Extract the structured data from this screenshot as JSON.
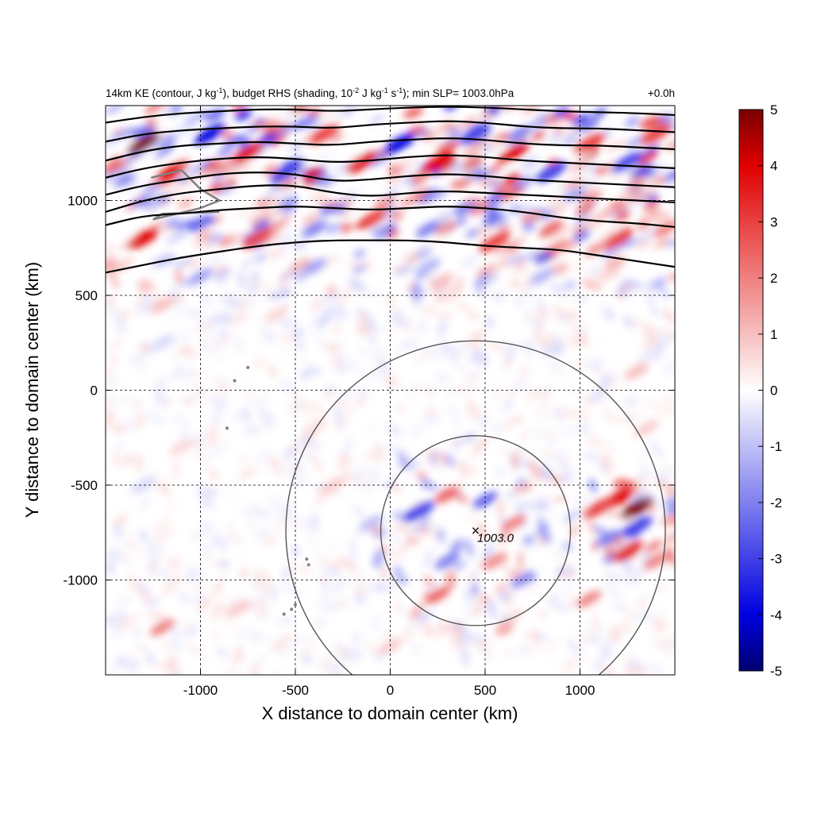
{
  "title": {
    "left_parts": [
      "14km KE (contour, J kg",
      "-1",
      "), budget RHS (shading, 10",
      "-2",
      " J kg",
      "-1",
      " s",
      "-1",
      "); min SLP= 1003.0hPa"
    ],
    "right": "+0.0h"
  },
  "colorbar_ticks": [
    "5",
    "4",
    "3",
    "2",
    "1",
    "0",
    "-1",
    "-2",
    "-3",
    "-4",
    "-5"
  ],
  "colors": {
    "max": "#7a0000",
    "pos": "#e00000",
    "zero": "#ffffff",
    "neg": "#0000e0",
    "min": "#000070",
    "contour": "#000000",
    "circle": "#555555",
    "coast": "#808080"
  },
  "chart_data": {
    "type": "heatmap",
    "xlabel": "X distance to domain center (km)",
    "ylabel": "Y distance to domain center (km)",
    "xlim": [
      -1500,
      1500
    ],
    "ylim": [
      -1500,
      1500
    ],
    "xticks": [
      -1000,
      -500,
      0,
      500,
      1000
    ],
    "yticks": [
      1000,
      500,
      0,
      -500,
      -1000
    ],
    "xtick_labels": [
      "-1000",
      "-500",
      "0",
      "500",
      "1000"
    ],
    "ytick_labels": [
      "1000",
      "500",
      "0",
      "-500",
      "-1000"
    ],
    "grid": true,
    "colorbar": {
      "min": -5,
      "max": 5,
      "label_values": [
        5,
        4,
        3,
        2,
        1,
        0,
        -1,
        -2,
        -3,
        -4,
        -5
      ]
    },
    "center": {
      "x": 450,
      "y": -740,
      "label": "1003.0",
      "marker": "×"
    },
    "range_circles_km": [
      500,
      1000
    ],
    "ke_contours": [
      [
        [
          -1500,
          620
        ],
        [
          -1300,
          660
        ],
        [
          -1100,
          700
        ],
        [
          -900,
          730
        ],
        [
          -700,
          760
        ],
        [
          -500,
          780
        ],
        [
          -300,
          790
        ],
        [
          -100,
          790
        ],
        [
          100,
          790
        ],
        [
          300,
          780
        ],
        [
          500,
          760
        ],
        [
          700,
          750
        ],
        [
          900,
          740
        ],
        [
          1100,
          710
        ],
        [
          1300,
          680
        ],
        [
          1500,
          650
        ]
      ],
      [
        [
          -1500,
          870
        ],
        [
          -1300,
          920
        ],
        [
          -1100,
          930
        ],
        [
          -900,
          950
        ],
        [
          -700,
          960
        ],
        [
          -500,
          970
        ],
        [
          -300,
          960
        ],
        [
          -100,
          950
        ],
        [
          100,
          960
        ],
        [
          300,
          970
        ],
        [
          500,
          960
        ],
        [
          700,
          940
        ],
        [
          900,
          910
        ],
        [
          1100,
          890
        ],
        [
          1300,
          880
        ],
        [
          1500,
          860
        ]
      ],
      [
        [
          -1500,
          940
        ],
        [
          -1300,
          1000
        ],
        [
          -1100,
          1040
        ],
        [
          -900,
          1060
        ],
        [
          -700,
          1080
        ],
        [
          -500,
          1080
        ],
        [
          -300,
          1040
        ],
        [
          -100,
          1020
        ],
        [
          100,
          1040
        ],
        [
          300,
          1050
        ],
        [
          500,
          1040
        ],
        [
          700,
          1030
        ],
        [
          900,
          1020
        ],
        [
          1100,
          1010
        ],
        [
          1300,
          1000
        ],
        [
          1500,
          990
        ]
      ],
      [
        [
          -1500,
          1030
        ],
        [
          -1300,
          1080
        ],
        [
          -1100,
          1110
        ],
        [
          -900,
          1140
        ],
        [
          -700,
          1150
        ],
        [
          -500,
          1140
        ],
        [
          -300,
          1100
        ],
        [
          -100,
          1110
        ],
        [
          100,
          1130
        ],
        [
          300,
          1140
        ],
        [
          500,
          1130
        ],
        [
          700,
          1110
        ],
        [
          900,
          1100
        ],
        [
          1100,
          1090
        ],
        [
          1300,
          1080
        ],
        [
          1500,
          1070
        ]
      ],
      [
        [
          -1500,
          1120
        ],
        [
          -1300,
          1170
        ],
        [
          -1100,
          1200
        ],
        [
          -900,
          1220
        ],
        [
          -700,
          1230
        ],
        [
          -500,
          1220
        ],
        [
          -300,
          1200
        ],
        [
          -100,
          1210
        ],
        [
          100,
          1230
        ],
        [
          300,
          1240
        ],
        [
          500,
          1230
        ],
        [
          700,
          1210
        ],
        [
          900,
          1200
        ],
        [
          1100,
          1190
        ],
        [
          1300,
          1180
        ],
        [
          1500,
          1170
        ]
      ],
      [
        [
          -1500,
          1210
        ],
        [
          -1300,
          1260
        ],
        [
          -1100,
          1290
        ],
        [
          -900,
          1300
        ],
        [
          -700,
          1310
        ],
        [
          -500,
          1300
        ],
        [
          -300,
          1290
        ],
        [
          -100,
          1310
        ],
        [
          100,
          1320
        ],
        [
          300,
          1330
        ],
        [
          500,
          1320
        ],
        [
          700,
          1300
        ],
        [
          900,
          1290
        ],
        [
          1100,
          1290
        ],
        [
          1300,
          1280
        ],
        [
          1500,
          1270
        ]
      ],
      [
        [
          -1500,
          1310
        ],
        [
          -1300,
          1350
        ],
        [
          -1100,
          1370
        ],
        [
          -900,
          1380
        ],
        [
          -700,
          1390
        ],
        [
          -500,
          1390
        ],
        [
          -300,
          1380
        ],
        [
          -100,
          1400
        ],
        [
          100,
          1410
        ],
        [
          300,
          1420
        ],
        [
          500,
          1410
        ],
        [
          700,
          1390
        ],
        [
          900,
          1380
        ],
        [
          1100,
          1380
        ],
        [
          1300,
          1370
        ],
        [
          1500,
          1360
        ]
      ],
      [
        [
          -1500,
          1410
        ],
        [
          -1300,
          1440
        ],
        [
          -1100,
          1460
        ],
        [
          -900,
          1470
        ],
        [
          -700,
          1480
        ],
        [
          -500,
          1480
        ],
        [
          -300,
          1470
        ],
        [
          -100,
          1480
        ],
        [
          100,
          1490
        ],
        [
          300,
          1495
        ],
        [
          500,
          1490
        ],
        [
          700,
          1480
        ],
        [
          900,
          1470
        ],
        [
          1100,
          1465
        ],
        [
          1300,
          1460
        ],
        [
          1500,
          1450
        ]
      ]
    ],
    "shading_features": [
      {
        "x": -1300,
        "y": 1300,
        "value": 5
      },
      {
        "x": -1150,
        "y": 1150,
        "value": 4
      },
      {
        "x": -950,
        "y": 1350,
        "value": -4
      },
      {
        "x": -750,
        "y": 1250,
        "value": 4
      },
      {
        "x": -550,
        "y": 1150,
        "value": -3
      },
      {
        "x": -350,
        "y": 1350,
        "value": 3
      },
      {
        "x": -150,
        "y": 1200,
        "value": 4
      },
      {
        "x": 50,
        "y": 1300,
        "value": -4
      },
      {
        "x": 250,
        "y": 1200,
        "value": 4
      },
      {
        "x": 450,
        "y": 1350,
        "value": -3
      },
      {
        "x": 650,
        "y": 1250,
        "value": 4
      },
      {
        "x": 850,
        "y": 1150,
        "value": -3
      },
      {
        "x": 1050,
        "y": 1300,
        "value": 3
      },
      {
        "x": 1250,
        "y": 1200,
        "value": -3
      },
      {
        "x": 1400,
        "y": 1350,
        "value": 3
      },
      {
        "x": -1300,
        "y": 800,
        "value": 4
      },
      {
        "x": -1000,
        "y": 880,
        "value": -2.5
      },
      {
        "x": -700,
        "y": 800,
        "value": 3
      },
      {
        "x": -400,
        "y": 850,
        "value": -2
      },
      {
        "x": -100,
        "y": 900,
        "value": 3
      },
      {
        "x": 200,
        "y": 850,
        "value": -2
      },
      {
        "x": 550,
        "y": 780,
        "value": 3
      },
      {
        "x": 850,
        "y": 850,
        "value": 2.5
      },
      {
        "x": 1200,
        "y": 800,
        "value": 3
      },
      {
        "x": 1450,
        "y": 850,
        "value": 2
      },
      {
        "x": -1000,
        "y": 600,
        "value": -1.5
      },
      {
        "x": -400,
        "y": 650,
        "value": -1.5
      },
      {
        "x": 200,
        "y": 650,
        "value": -1.2
      },
      {
        "x": 800,
        "y": 600,
        "value": -1.2
      },
      {
        "x": -1200,
        "y": 450,
        "value": 1
      },
      {
        "x": -600,
        "y": 400,
        "value": 0.6
      },
      {
        "x": 300,
        "y": 500,
        "value": 0.5
      },
      {
        "x": -1200,
        "y": 250,
        "value": -0.6
      },
      {
        "x": 1300,
        "y": 100,
        "value": 1
      },
      {
        "x": 1350,
        "y": -200,
        "value": 0.8
      },
      {
        "x": 1200,
        "y": -570,
        "value": 4
      },
      {
        "x": 1300,
        "y": -620,
        "value": 5
      },
      {
        "x": 1100,
        "y": -620,
        "value": 3
      },
      {
        "x": 1250,
        "y": -850,
        "value": 3.5
      },
      {
        "x": 1300,
        "y": -720,
        "value": -3
      },
      {
        "x": 1150,
        "y": -780,
        "value": -2
      },
      {
        "x": 1400,
        "y": -900,
        "value": 2
      },
      {
        "x": 150,
        "y": -640,
        "value": -3
      },
      {
        "x": 300,
        "y": -550,
        "value": 2.5
      },
      {
        "x": 500,
        "y": -580,
        "value": -2.5
      },
      {
        "x": 650,
        "y": -700,
        "value": 2
      },
      {
        "x": 300,
        "y": -900,
        "value": -2
      },
      {
        "x": 550,
        "y": -900,
        "value": 1.8
      },
      {
        "x": 250,
        "y": -1080,
        "value": 2.5
      },
      {
        "x": 700,
        "y": -1000,
        "value": -1.8
      },
      {
        "x": 1050,
        "y": -1100,
        "value": 2
      },
      {
        "x": -100,
        "y": -700,
        "value": -1
      },
      {
        "x": -300,
        "y": -500,
        "value": 0.8
      },
      {
        "x": -1200,
        "y": -1250,
        "value": 2
      },
      {
        "x": -800,
        "y": -1150,
        "value": 0.8
      },
      {
        "x": -1300,
        "y": -500,
        "value": -0.6
      },
      {
        "x": -1100,
        "y": -300,
        "value": 0.6
      },
      {
        "x": -400,
        "y": -200,
        "value": 0.5
      },
      {
        "x": 0,
        "y": -1350,
        "value": 0.8
      }
    ]
  }
}
